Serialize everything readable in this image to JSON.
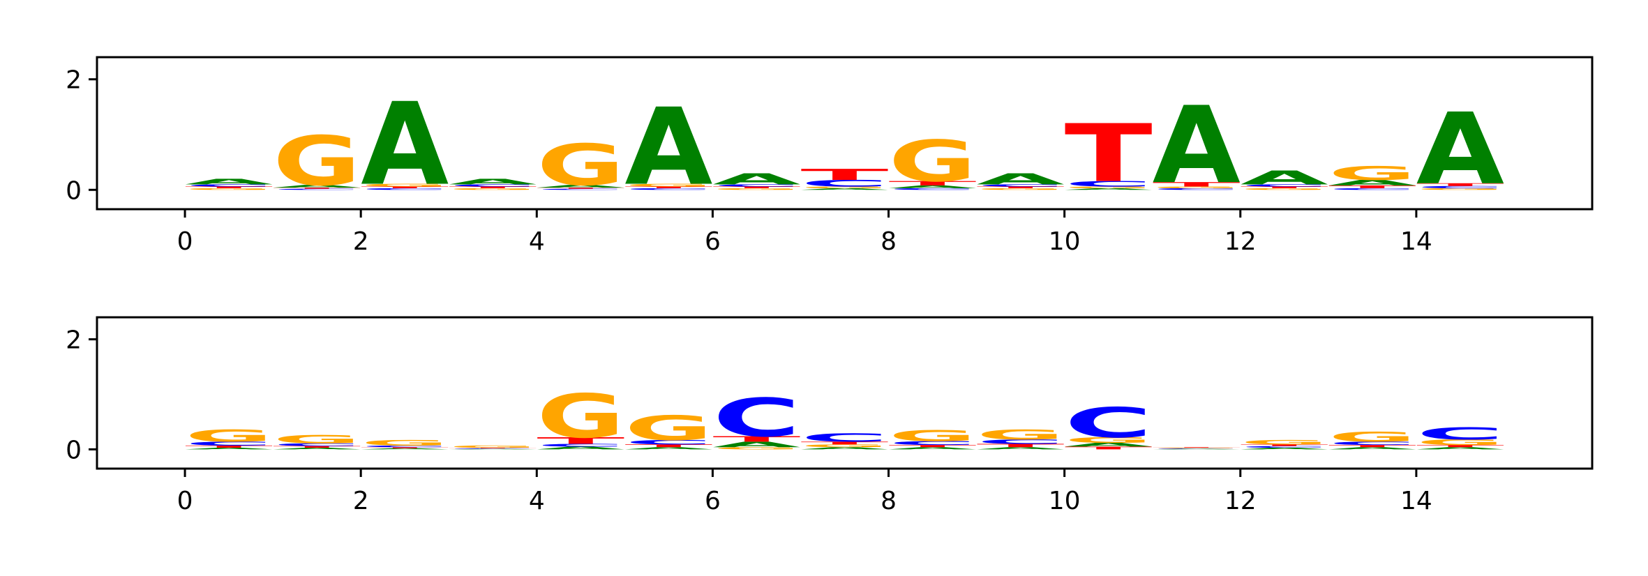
{
  "chart_data": [
    {
      "type": "sequence-logo",
      "xlabel": "",
      "ylabel": "",
      "xlim": [
        -1,
        16
      ],
      "ylim": [
        -0.35,
        2.4
      ],
      "xticks": [
        "0",
        "2",
        "4",
        "6",
        "8",
        "10",
        "12",
        "14"
      ],
      "yticks": [
        "0",
        "2"
      ],
      "positions": [
        {
          "x": 0,
          "A": 0.1,
          "C": 0.04,
          "G": 0.03,
          "T": 0.03
        },
        {
          "x": 1,
          "A": 0.05,
          "C": 0.02,
          "G": 0.9,
          "T": 0.02
        },
        {
          "x": 2,
          "A": 1.5,
          "C": 0.03,
          "G": 0.05,
          "T": 0.03
        },
        {
          "x": 3,
          "A": 0.1,
          "C": 0.04,
          "G": 0.03,
          "T": 0.03
        },
        {
          "x": 4,
          "A": 0.05,
          "C": 0.02,
          "G": 0.75,
          "T": 0.02
        },
        {
          "x": 5,
          "A": 1.4,
          "C": 0.03,
          "G": 0.05,
          "T": 0.03
        },
        {
          "x": 6,
          "A": 0.2,
          "C": 0.04,
          "G": 0.03,
          "T": 0.03
        },
        {
          "x": 7,
          "A": 0.03,
          "C": 0.12,
          "G": 0.03,
          "T": 0.2
        },
        {
          "x": 8,
          "A": 0.05,
          "C": 0.03,
          "G": 0.75,
          "T": 0.08
        },
        {
          "x": 9,
          "A": 0.2,
          "C": 0.04,
          "G": 0.03,
          "T": 0.03
        },
        {
          "x": 10,
          "A": 0.03,
          "C": 0.1,
          "G": 0.03,
          "T": 1.05
        },
        {
          "x": 11,
          "A": 1.4,
          "C": 0.03,
          "G": 0.03,
          "T": 0.08
        },
        {
          "x": 12,
          "A": 0.25,
          "C": 0.04,
          "G": 0.03,
          "T": 0.03
        },
        {
          "x": 13,
          "A": 0.1,
          "C": 0.03,
          "G": 0.25,
          "T": 0.05
        },
        {
          "x": 14,
          "A": 1.3,
          "C": 0.04,
          "G": 0.03,
          "T": 0.05
        }
      ]
    },
    {
      "type": "sequence-logo",
      "xlabel": "",
      "ylabel": "",
      "xlim": [
        -1,
        16
      ],
      "ylim": [
        -0.35,
        2.4
      ],
      "xticks": [
        "0",
        "2",
        "4",
        "6",
        "8",
        "10",
        "12",
        "14"
      ],
      "yticks": [
        "0",
        "2"
      ],
      "positions": [
        {
          "x": 0,
          "A": 0.03,
          "C": 0.07,
          "G": 0.22,
          "T": 0.04
        },
        {
          "x": 1,
          "A": 0.03,
          "C": 0.05,
          "G": 0.15,
          "T": 0.03
        },
        {
          "x": 2,
          "A": 0.02,
          "C": 0.03,
          "G": 0.1,
          "T": 0.02
        },
        {
          "x": 3,
          "A": 0.01,
          "C": 0.01,
          "G": 0.04,
          "T": 0.01
        },
        {
          "x": 4,
          "A": 0.05,
          "C": 0.05,
          "G": 0.8,
          "T": 0.12
        },
        {
          "x": 5,
          "A": 0.04,
          "C": 0.08,
          "G": 0.45,
          "T": 0.05
        },
        {
          "x": 6,
          "A": 0.1,
          "C": 0.7,
          "G": 0.04,
          "T": 0.1
        },
        {
          "x": 7,
          "A": 0.04,
          "C": 0.15,
          "G": 0.05,
          "T": 0.05
        },
        {
          "x": 8,
          "A": 0.04,
          "C": 0.07,
          "G": 0.2,
          "T": 0.04
        },
        {
          "x": 9,
          "A": 0.04,
          "C": 0.08,
          "G": 0.18,
          "T": 0.06
        },
        {
          "x": 10,
          "A": 0.07,
          "C": 0.55,
          "G": 0.1,
          "T": 0.05
        },
        {
          "x": 11,
          "A": 0.01,
          "C": 0.01,
          "G": 0.01,
          "T": 0.01
        },
        {
          "x": 12,
          "A": 0.03,
          "C": 0.03,
          "G": 0.08,
          "T": 0.03
        },
        {
          "x": 13,
          "A": 0.04,
          "C": 0.06,
          "G": 0.18,
          "T": 0.04
        },
        {
          "x": 14,
          "A": 0.04,
          "C": 0.22,
          "G": 0.1,
          "T": 0.04
        }
      ]
    }
  ],
  "colors": {
    "A": "#008000",
    "C": "#0000ff",
    "G": "#ffa500",
    "T": "#ff0000"
  }
}
